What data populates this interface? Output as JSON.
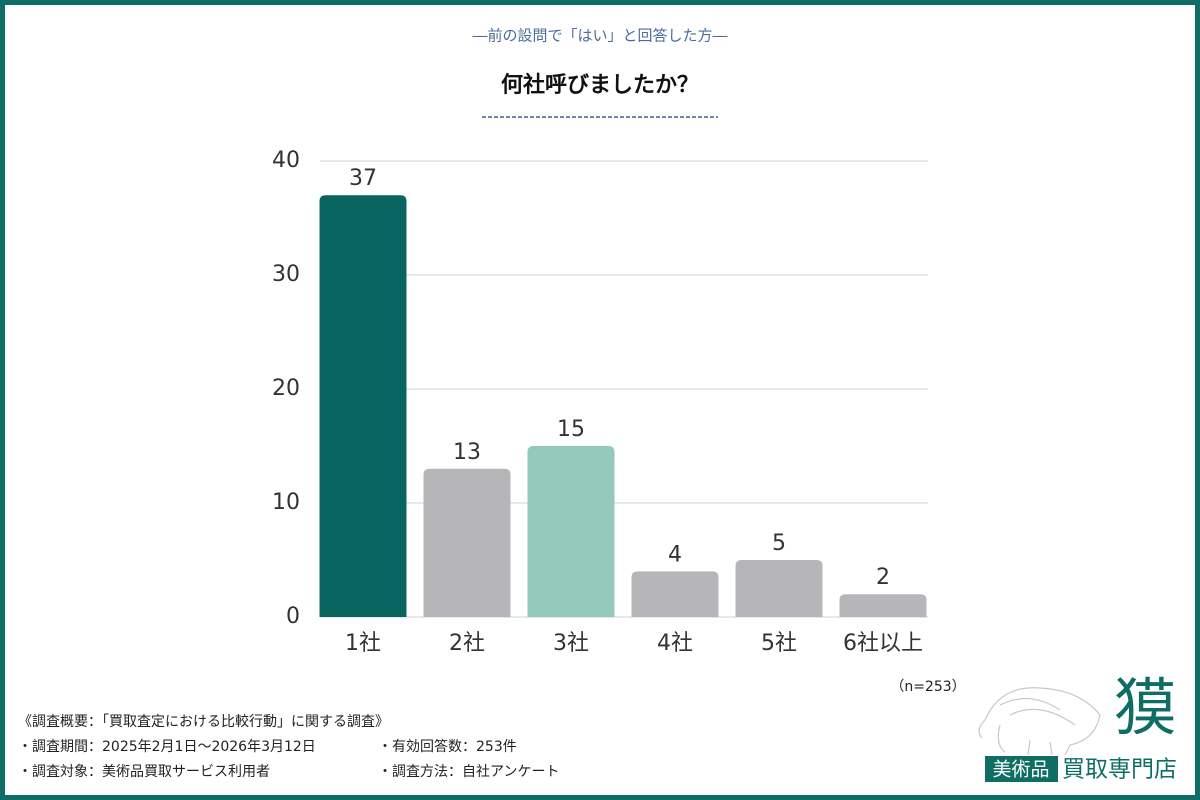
{
  "chart_data": {
    "type": "bar",
    "subtitle": "―前の設問で「はい」と回答した方―",
    "title": "何社呼びましたか？",
    "categories": [
      "1社",
      "2社",
      "3社",
      "4社",
      "5社",
      "6社以上"
    ],
    "values": [
      37,
      13,
      15,
      4,
      5,
      2
    ],
    "colors": [
      "#07645f",
      "#b6b6b9",
      "#93c8bb",
      "#b6b6b9",
      "#b6b6b9",
      "#b6b6b9"
    ],
    "ylim": [
      0,
      40
    ],
    "yticks": [
      0,
      10,
      20,
      30,
      40
    ],
    "grid": true,
    "sample_note": "（n=253）"
  },
  "footer": {
    "heading": "《調査概要：「買取査定における比較行動」に関する調査》",
    "period": "・調査期間：2025年2月1日～2026年3月12日",
    "responses": "・有効回答数：253件",
    "target": "・調査対象：美術品買取サービス利用者",
    "method": "・調査方法：自社アンケート"
  },
  "logo": {
    "mark": "獏",
    "badge": "美術品",
    "name": "買取専門店"
  }
}
